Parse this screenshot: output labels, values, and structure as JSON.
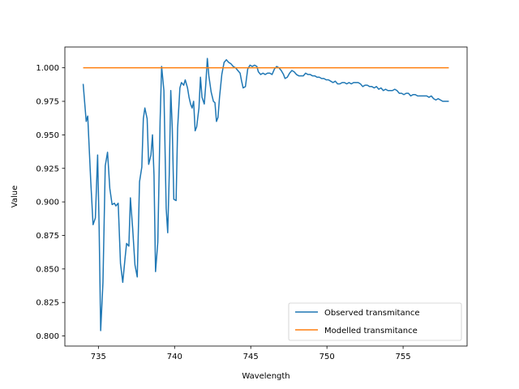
{
  "chart_data": {
    "type": "line",
    "xlabel": "Wavelength",
    "ylabel": "Value",
    "xlim": [
      732.8,
      759.2
    ],
    "ylim": [
      0.7925,
      1.0155
    ],
    "x_ticks": [
      735,
      740,
      745,
      750,
      755
    ],
    "y_ticks": [
      0.8,
      0.825,
      0.85,
      0.875,
      0.9,
      0.925,
      0.95,
      0.975,
      1.0
    ],
    "y_tick_labels": [
      "0.800",
      "0.825",
      "0.850",
      "0.875",
      "0.900",
      "0.925",
      "0.950",
      "0.975",
      "1.000"
    ],
    "grid": false,
    "legend_position": "lower-right",
    "series": [
      {
        "name": "Observed transmitance",
        "color": "#1f77b4",
        "points": [
          [
            734.0,
            0.988
          ],
          [
            734.2,
            0.96
          ],
          [
            734.3,
            0.964
          ],
          [
            734.5,
            0.915
          ],
          [
            734.65,
            0.883
          ],
          [
            734.8,
            0.888
          ],
          [
            734.95,
            0.935
          ],
          [
            735.05,
            0.88
          ],
          [
            735.15,
            0.804
          ],
          [
            735.3,
            0.84
          ],
          [
            735.45,
            0.927
          ],
          [
            735.6,
            0.937
          ],
          [
            735.75,
            0.91
          ],
          [
            735.9,
            0.898
          ],
          [
            736.05,
            0.899
          ],
          [
            736.15,
            0.897
          ],
          [
            736.3,
            0.899
          ],
          [
            736.45,
            0.854
          ],
          [
            736.6,
            0.84
          ],
          [
            736.75,
            0.858
          ],
          [
            736.85,
            0.869
          ],
          [
            737.0,
            0.867
          ],
          [
            737.1,
            0.903
          ],
          [
            737.25,
            0.88
          ],
          [
            737.4,
            0.853
          ],
          [
            737.55,
            0.844
          ],
          [
            737.7,
            0.915
          ],
          [
            737.85,
            0.926
          ],
          [
            737.95,
            0.962
          ],
          [
            738.05,
            0.97
          ],
          [
            738.2,
            0.962
          ],
          [
            738.3,
            0.928
          ],
          [
            738.45,
            0.935
          ],
          [
            738.55,
            0.95
          ],
          [
            738.65,
            0.92
          ],
          [
            738.75,
            0.848
          ],
          [
            738.9,
            0.87
          ],
          [
            739.05,
            0.96
          ],
          [
            739.15,
            1.001
          ],
          [
            739.3,
            0.983
          ],
          [
            739.45,
            0.895
          ],
          [
            739.55,
            0.877
          ],
          [
            739.65,
            0.92
          ],
          [
            739.75,
            0.983
          ],
          [
            739.85,
            0.955
          ],
          [
            739.95,
            0.902
          ],
          [
            740.1,
            0.901
          ],
          [
            740.2,
            0.955
          ],
          [
            740.35,
            0.985
          ],
          [
            740.45,
            0.989
          ],
          [
            740.6,
            0.987
          ],
          [
            740.7,
            0.991
          ],
          [
            740.85,
            0.985
          ],
          [
            740.95,
            0.978
          ],
          [
            741.05,
            0.973
          ],
          [
            741.15,
            0.97
          ],
          [
            741.25,
            0.975
          ],
          [
            741.35,
            0.953
          ],
          [
            741.45,
            0.956
          ],
          [
            741.6,
            0.97
          ],
          [
            741.7,
            0.993
          ],
          [
            741.8,
            0.978
          ],
          [
            741.95,
            0.973
          ],
          [
            742.05,
            0.988
          ],
          [
            742.15,
            1.007
          ],
          [
            742.25,
            0.994
          ],
          [
            742.4,
            0.982
          ],
          [
            742.55,
            0.975
          ],
          [
            742.65,
            0.974
          ],
          [
            742.75,
            0.96
          ],
          [
            742.85,
            0.963
          ],
          [
            742.95,
            0.978
          ],
          [
            743.1,
            0.995
          ],
          [
            743.25,
            1.004
          ],
          [
            743.4,
            1.006
          ],
          [
            743.55,
            1.004
          ],
          [
            743.7,
            1.003
          ],
          [
            743.85,
            1.001
          ],
          [
            744.0,
            1.0
          ],
          [
            744.15,
            0.998
          ],
          [
            744.3,
            0.996
          ],
          [
            744.4,
            0.99
          ],
          [
            744.5,
            0.985
          ],
          [
            744.65,
            0.986
          ],
          [
            744.8,
            0.999
          ],
          [
            744.95,
            1.002
          ],
          [
            745.1,
            1.001
          ],
          [
            745.25,
            1.002
          ],
          [
            745.4,
            1.001
          ],
          [
            745.5,
            0.997
          ],
          [
            745.65,
            0.995
          ],
          [
            745.8,
            0.996
          ],
          [
            745.95,
            0.995
          ],
          [
            746.1,
            0.996
          ],
          [
            746.25,
            0.996
          ],
          [
            746.4,
            0.995
          ],
          [
            746.55,
            0.999
          ],
          [
            746.7,
            1.001
          ],
          [
            746.85,
            1.0
          ],
          [
            747.0,
            0.998
          ],
          [
            747.15,
            0.995
          ],
          [
            747.25,
            0.992
          ],
          [
            747.4,
            0.993
          ],
          [
            747.55,
            0.996
          ],
          [
            747.7,
            0.998
          ],
          [
            747.85,
            0.997
          ],
          [
            748.0,
            0.995
          ],
          [
            748.15,
            0.994
          ],
          [
            748.3,
            0.994
          ],
          [
            748.45,
            0.994
          ],
          [
            748.6,
            0.996
          ],
          [
            748.75,
            0.995
          ],
          [
            748.9,
            0.995
          ],
          [
            749.05,
            0.994
          ],
          [
            749.2,
            0.994
          ],
          [
            749.35,
            0.993
          ],
          [
            749.5,
            0.993
          ],
          [
            749.65,
            0.992
          ],
          [
            749.8,
            0.992
          ],
          [
            749.95,
            0.991
          ],
          [
            750.1,
            0.991
          ],
          [
            750.25,
            0.99
          ],
          [
            750.4,
            0.989
          ],
          [
            750.55,
            0.99
          ],
          [
            750.7,
            0.988
          ],
          [
            750.85,
            0.988
          ],
          [
            751.0,
            0.989
          ],
          [
            751.15,
            0.989
          ],
          [
            751.3,
            0.988
          ],
          [
            751.45,
            0.989
          ],
          [
            751.6,
            0.988
          ],
          [
            751.75,
            0.989
          ],
          [
            751.9,
            0.989
          ],
          [
            752.05,
            0.989
          ],
          [
            752.2,
            0.988
          ],
          [
            752.35,
            0.986
          ],
          [
            752.5,
            0.987
          ],
          [
            752.65,
            0.987
          ],
          [
            752.8,
            0.986
          ],
          [
            752.95,
            0.986
          ],
          [
            753.1,
            0.985
          ],
          [
            753.25,
            0.986
          ],
          [
            753.4,
            0.984
          ],
          [
            753.55,
            0.985
          ],
          [
            753.7,
            0.983
          ],
          [
            753.85,
            0.984
          ],
          [
            754.0,
            0.983
          ],
          [
            754.15,
            0.983
          ],
          [
            754.3,
            0.983
          ],
          [
            754.45,
            0.984
          ],
          [
            754.6,
            0.983
          ],
          [
            754.75,
            0.981
          ],
          [
            754.9,
            0.981
          ],
          [
            755.05,
            0.98
          ],
          [
            755.2,
            0.981
          ],
          [
            755.35,
            0.981
          ],
          [
            755.5,
            0.979
          ],
          [
            755.65,
            0.98
          ],
          [
            755.8,
            0.98
          ],
          [
            755.95,
            0.979
          ],
          [
            756.1,
            0.979
          ],
          [
            756.25,
            0.979
          ],
          [
            756.4,
            0.979
          ],
          [
            756.55,
            0.979
          ],
          [
            756.7,
            0.978
          ],
          [
            756.85,
            0.979
          ],
          [
            757.0,
            0.977
          ],
          [
            757.15,
            0.976
          ],
          [
            757.3,
            0.977
          ],
          [
            757.45,
            0.976
          ],
          [
            757.6,
            0.975
          ],
          [
            757.75,
            0.975
          ],
          [
            757.9,
            0.975
          ],
          [
            758.0,
            0.975
          ]
        ]
      },
      {
        "name": "Modelled transmitance",
        "color": "#ff7f0e",
        "points": [
          [
            734.0,
            1.0
          ],
          [
            758.0,
            1.0
          ]
        ]
      }
    ]
  }
}
